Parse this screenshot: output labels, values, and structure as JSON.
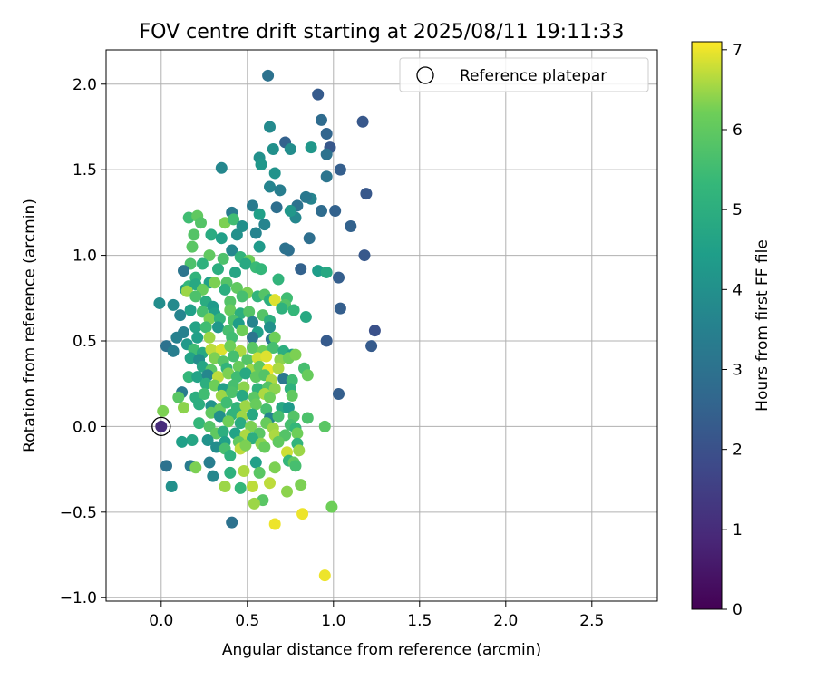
{
  "chart_data": {
    "type": "scatter",
    "title": "FOV centre drift starting at 2025/08/11 19:11:33",
    "xlabel": "Angular distance from reference (arcmin)",
    "ylabel": "Rotation from reference (arcmin)",
    "xlim": [
      -0.32,
      2.88
    ],
    "ylim": [
      -1.02,
      2.2
    ],
    "x_ticks": [
      "0.0",
      "0.5",
      "1.0",
      "1.5",
      "2.0",
      "2.5"
    ],
    "y_ticks": [
      "−1.0",
      "−0.5",
      "0.0",
      "0.5",
      "1.0",
      "1.5",
      "2.0"
    ],
    "grid": true,
    "legend": {
      "placement": "top-right",
      "entries": [
        "Reference platepar"
      ]
    },
    "colorbar": {
      "label": "Hours from first FF file",
      "colormap": "viridis",
      "range": [
        0,
        7.1
      ],
      "ticks": [
        "0",
        "1",
        "2",
        "3",
        "4",
        "5",
        "6",
        "7"
      ]
    },
    "reference_point": {
      "x": 0.0,
      "y": 0.0
    },
    "points_columns": [
      "x",
      "y",
      "hours"
    ],
    "points": [
      [
        0.0,
        0.0,
        1.0
      ],
      [
        0.62,
        2.05,
        3.0
      ],
      [
        0.91,
        1.94,
        2.3
      ],
      [
        0.93,
        1.79,
        2.8
      ],
      [
        0.63,
        1.75,
        3.8
      ],
      [
        1.17,
        1.78,
        2.2
      ],
      [
        0.96,
        1.71,
        2.6
      ],
      [
        0.72,
        1.66,
        2.5
      ],
      [
        0.98,
        1.63,
        2.2
      ],
      [
        0.87,
        1.63,
        4.2
      ],
      [
        0.75,
        1.62,
        3.9
      ],
      [
        0.96,
        1.59,
        3.0
      ],
      [
        0.57,
        1.57,
        4.0
      ],
      [
        0.65,
        1.62,
        4.0
      ],
      [
        0.58,
        1.53,
        4.2
      ],
      [
        0.35,
        1.51,
        3.7
      ],
      [
        1.04,
        1.5,
        2.4
      ],
      [
        0.66,
        1.48,
        4.1
      ],
      [
        0.96,
        1.46,
        3.1
      ],
      [
        0.63,
        1.4,
        3.6
      ],
      [
        0.69,
        1.38,
        3.4
      ],
      [
        0.87,
        1.33,
        3.6
      ],
      [
        0.84,
        1.34,
        3.2
      ],
      [
        1.19,
        1.36,
        2.2
      ],
      [
        0.53,
        1.29,
        3.3
      ],
      [
        0.67,
        1.28,
        2.9
      ],
      [
        0.79,
        1.29,
        3.0
      ],
      [
        0.93,
        1.26,
        2.8
      ],
      [
        1.01,
        1.26,
        2.5
      ],
      [
        0.41,
        1.25,
        3.3
      ],
      [
        0.57,
        1.24,
        4.5
      ],
      [
        0.78,
        1.22,
        3.7
      ],
      [
        0.75,
        1.26,
        4.2
      ],
      [
        0.16,
        1.22,
        5.5
      ],
      [
        0.21,
        1.23,
        6.0
      ],
      [
        0.23,
        1.19,
        5.8
      ],
      [
        0.37,
        1.19,
        6.3
      ],
      [
        0.42,
        1.21,
        5.5
      ],
      [
        0.47,
        1.17,
        4.0
      ],
      [
        0.6,
        1.18,
        3.6
      ],
      [
        1.1,
        1.17,
        2.5
      ],
      [
        0.19,
        1.12,
        5.8
      ],
      [
        0.29,
        1.12,
        4.9
      ],
      [
        0.35,
        1.1,
        4.5
      ],
      [
        0.44,
        1.12,
        4.0
      ],
      [
        0.55,
        1.13,
        3.6
      ],
      [
        0.86,
        1.1,
        2.9
      ],
      [
        0.18,
        1.05,
        5.9
      ],
      [
        0.41,
        1.03,
        3.7
      ],
      [
        0.57,
        1.05,
        4.3
      ],
      [
        0.74,
        1.03,
        2.9
      ],
      [
        0.72,
        1.04,
        3.0
      ],
      [
        1.18,
        1.0,
        2.2
      ],
      [
        0.28,
        1.0,
        6.0
      ],
      [
        0.36,
        0.98,
        5.7
      ],
      [
        0.46,
        0.99,
        5.2
      ],
      [
        0.51,
        0.97,
        6.2
      ],
      [
        0.17,
        0.95,
        5.7
      ],
      [
        0.24,
        0.95,
        5.1
      ],
      [
        0.49,
        0.95,
        4.8
      ],
      [
        0.55,
        0.93,
        5.4
      ],
      [
        0.13,
        0.91,
        3.1
      ],
      [
        0.33,
        0.92,
        5.0
      ],
      [
        0.43,
        0.9,
        4.7
      ],
      [
        0.58,
        0.92,
        5.3
      ],
      [
        0.81,
        0.92,
        2.5
      ],
      [
        0.91,
        0.91,
        4.4
      ],
      [
        0.96,
        0.9,
        4.8
      ],
      [
        1.03,
        0.87,
        2.4
      ],
      [
        0.2,
        0.87,
        5.2
      ],
      [
        0.28,
        0.84,
        4.5
      ],
      [
        0.38,
        0.84,
        5.8
      ],
      [
        0.68,
        0.86,
        5.2
      ],
      [
        0.14,
        0.8,
        4.2
      ],
      [
        0.16,
        0.82,
        5.3
      ],
      [
        0.2,
        0.83,
        4.8
      ],
      [
        0.24,
        0.8,
        6.1
      ],
      [
        0.31,
        0.84,
        6.3
      ],
      [
        0.37,
        0.8,
        5.0
      ],
      [
        0.44,
        0.81,
        6.0
      ],
      [
        0.5,
        0.78,
        6.3
      ],
      [
        0.15,
        0.79,
        6.5
      ],
      [
        0.2,
        0.76,
        5.7
      ],
      [
        0.26,
        0.73,
        4.9
      ],
      [
        0.3,
        0.7,
        4.3
      ],
      [
        0.4,
        0.73,
        5.8
      ],
      [
        0.47,
        0.76,
        5.6
      ],
      [
        0.56,
        0.76,
        5.2
      ],
      [
        0.6,
        0.77,
        5.8
      ],
      [
        0.63,
        0.74,
        5.0
      ],
      [
        0.66,
        0.74,
        6.9
      ],
      [
        0.73,
        0.75,
        5.5
      ],
      [
        0.72,
        0.71,
        5.8
      ],
      [
        0.7,
        0.69,
        5.1
      ],
      [
        0.77,
        0.68,
        5.3
      ],
      [
        -0.01,
        0.72,
        3.9
      ],
      [
        0.07,
        0.71,
        3.8
      ],
      [
        0.11,
        0.65,
        3.6
      ],
      [
        0.17,
        0.68,
        4.5
      ],
      [
        0.24,
        0.67,
        5.6
      ],
      [
        0.31,
        0.66,
        4.5
      ],
      [
        0.4,
        0.68,
        6.1
      ],
      [
        0.46,
        0.66,
        5.0
      ],
      [
        0.51,
        0.67,
        5.8
      ],
      [
        0.59,
        0.65,
        5.8
      ],
      [
        0.63,
        0.62,
        5.0
      ],
      [
        0.28,
        0.63,
        6.3
      ],
      [
        0.34,
        0.63,
        5.2
      ],
      [
        0.42,
        0.62,
        5.7
      ],
      [
        0.45,
        0.6,
        4.4
      ],
      [
        0.53,
        0.61,
        3.6
      ],
      [
        0.84,
        0.64,
        4.8
      ],
      [
        1.04,
        0.69,
        2.4
      ],
      [
        0.2,
        0.58,
        4.6
      ],
      [
        0.26,
        0.58,
        5.5
      ],
      [
        0.33,
        0.58,
        4.2
      ],
      [
        0.39,
        0.56,
        5.6
      ],
      [
        0.47,
        0.56,
        6.2
      ],
      [
        0.56,
        0.55,
        4.5
      ],
      [
        0.63,
        0.58,
        4.0
      ],
      [
        0.13,
        0.55,
        3.5
      ],
      [
        0.09,
        0.52,
        3.5
      ],
      [
        0.21,
        0.52,
        4.5
      ],
      [
        0.28,
        0.52,
        6.5
      ],
      [
        0.41,
        0.52,
        5.5
      ],
      [
        0.53,
        0.52,
        3.1
      ],
      [
        0.64,
        0.51,
        3.2
      ],
      [
        0.66,
        0.52,
        6.2
      ],
      [
        0.96,
        0.5,
        2.3
      ],
      [
        1.24,
        0.56,
        2.0
      ],
      [
        1.22,
        0.47,
        2.3
      ],
      [
        0.03,
        0.47,
        3.0
      ],
      [
        0.07,
        0.44,
        3.4
      ],
      [
        0.15,
        0.48,
        4.3
      ],
      [
        0.19,
        0.45,
        5.5
      ],
      [
        0.24,
        0.43,
        4.8
      ],
      [
        0.29,
        0.45,
        6.7
      ],
      [
        0.35,
        0.45,
        6.9
      ],
      [
        0.4,
        0.47,
        6.2
      ],
      [
        0.46,
        0.44,
        6.6
      ],
      [
        0.53,
        0.46,
        5.9
      ],
      [
        0.59,
        0.44,
        6.2
      ],
      [
        0.65,
        0.46,
        5.6
      ],
      [
        0.71,
        0.44,
        5.0
      ],
      [
        0.76,
        0.42,
        4.5
      ],
      [
        0.17,
        0.4,
        4.6
      ],
      [
        0.22,
        0.39,
        3.9
      ],
      [
        0.31,
        0.4,
        6.3
      ],
      [
        0.36,
        0.38,
        5.8
      ],
      [
        0.42,
        0.41,
        5.6
      ],
      [
        0.5,
        0.39,
        5.8
      ],
      [
        0.56,
        0.4,
        6.8
      ],
      [
        0.61,
        0.41,
        6.9
      ],
      [
        0.69,
        0.39,
        6.4
      ],
      [
        0.74,
        0.4,
        6.2
      ],
      [
        0.78,
        0.42,
        6.3
      ],
      [
        0.24,
        0.35,
        4.7
      ],
      [
        0.29,
        0.33,
        5.9
      ],
      [
        0.38,
        0.34,
        5.2
      ],
      [
        0.45,
        0.35,
        6.1
      ],
      [
        0.52,
        0.33,
        6.5
      ],
      [
        0.57,
        0.35,
        6.0
      ],
      [
        0.62,
        0.33,
        7.0
      ],
      [
        0.68,
        0.34,
        6.6
      ],
      [
        0.83,
        0.34,
        5.6
      ],
      [
        0.85,
        0.3,
        6.1
      ],
      [
        0.16,
        0.29,
        5.3
      ],
      [
        0.21,
        0.29,
        4.6
      ],
      [
        0.27,
        0.3,
        3.7
      ],
      [
        0.33,
        0.29,
        6.7
      ],
      [
        0.39,
        0.31,
        6.3
      ],
      [
        0.44,
        0.29,
        5.5
      ],
      [
        0.49,
        0.31,
        4.8
      ],
      [
        0.55,
        0.29,
        6.0
      ],
      [
        0.6,
        0.3,
        5.8
      ],
      [
        0.64,
        0.27,
        6.6
      ],
      [
        0.71,
        0.28,
        3.2
      ],
      [
        0.76,
        0.27,
        5.5
      ],
      [
        0.26,
        0.25,
        5.0
      ],
      [
        0.31,
        0.24,
        6.2
      ],
      [
        0.36,
        0.22,
        4.5
      ],
      [
        0.42,
        0.24,
        5.6
      ],
      [
        0.48,
        0.23,
        6.4
      ],
      [
        0.56,
        0.22,
        5.2
      ],
      [
        0.62,
        0.23,
        5.8
      ],
      [
        0.66,
        0.22,
        6.4
      ],
      [
        0.75,
        0.22,
        5.1
      ],
      [
        0.12,
        0.2,
        3.3
      ],
      [
        0.2,
        0.17,
        5.0
      ],
      [
        0.25,
        0.19,
        5.5
      ],
      [
        0.35,
        0.18,
        6.5
      ],
      [
        0.41,
        0.2,
        5.7
      ],
      [
        0.47,
        0.18,
        4.8
      ],
      [
        0.54,
        0.17,
        5.9
      ],
      [
        0.6,
        0.19,
        6.6
      ],
      [
        0.63,
        0.17,
        6.2
      ],
      [
        0.76,
        0.18,
        6.0
      ],
      [
        1.03,
        0.19,
        2.4
      ],
      [
        0.1,
        0.17,
        5.9
      ],
      [
        0.13,
        0.11,
        6.4
      ],
      [
        0.22,
        0.13,
        5.0
      ],
      [
        0.29,
        0.12,
        4.1
      ],
      [
        0.34,
        0.1,
        6.1
      ],
      [
        0.38,
        0.14,
        5.5
      ],
      [
        0.44,
        0.11,
        5.2
      ],
      [
        0.49,
        0.12,
        6.5
      ],
      [
        0.55,
        0.13,
        6.1
      ],
      [
        0.61,
        0.1,
        5.6
      ],
      [
        0.7,
        0.11,
        4.8
      ],
      [
        0.74,
        0.11,
        4.3
      ],
      [
        0.01,
        0.09,
        6.3
      ],
      [
        0.29,
        0.08,
        6.0
      ],
      [
        0.34,
        0.06,
        4.0
      ],
      [
        0.41,
        0.07,
        5.2
      ],
      [
        0.47,
        0.06,
        6.5
      ],
      [
        0.53,
        0.07,
        4.8
      ],
      [
        0.63,
        0.05,
        3.6
      ],
      [
        0.68,
        0.06,
        5.6
      ],
      [
        0.77,
        0.06,
        5.8
      ],
      [
        0.85,
        0.05,
        5.7
      ],
      [
        0.22,
        0.02,
        5.3
      ],
      [
        0.28,
        0.0,
        5.8
      ],
      [
        0.39,
        0.03,
        6.2
      ],
      [
        0.46,
        0.02,
        4.9
      ],
      [
        0.52,
        0.0,
        6.3
      ],
      [
        0.61,
        0.02,
        6.1
      ],
      [
        0.65,
        -0.01,
        6.5
      ],
      [
        0.75,
        0.01,
        5.6
      ],
      [
        0.78,
        -0.01,
        5.3
      ],
      [
        0.95,
        0.0,
        5.9
      ],
      [
        0.32,
        -0.04,
        6.0
      ],
      [
        0.36,
        -0.03,
        5.0
      ],
      [
        0.43,
        -0.04,
        4.6
      ],
      [
        0.49,
        -0.05,
        6.6
      ],
      [
        0.57,
        -0.04,
        5.9
      ],
      [
        0.66,
        -0.05,
        6.6
      ],
      [
        0.72,
        -0.05,
        5.8
      ],
      [
        0.79,
        -0.04,
        6.2
      ],
      [
        0.18,
        -0.08,
        4.7
      ],
      [
        0.27,
        -0.08,
        4.1
      ],
      [
        0.37,
        -0.09,
        4.5
      ],
      [
        0.45,
        -0.09,
        6.0
      ],
      [
        0.53,
        -0.07,
        5.0
      ],
      [
        0.58,
        -0.1,
        6.4
      ],
      [
        0.68,
        -0.09,
        6.0
      ],
      [
        0.79,
        -0.1,
        5.2
      ],
      [
        0.12,
        -0.09,
        4.5
      ],
      [
        0.32,
        -0.12,
        3.9
      ],
      [
        0.37,
        -0.13,
        5.6
      ],
      [
        0.46,
        -0.13,
        6.7
      ],
      [
        0.49,
        -0.11,
        6.3
      ],
      [
        0.6,
        -0.12,
        6.1
      ],
      [
        0.73,
        -0.15,
        6.8
      ],
      [
        0.8,
        -0.14,
        6.5
      ],
      [
        0.4,
        -0.17,
        5.1
      ],
      [
        0.17,
        -0.23,
        3.3
      ],
      [
        0.28,
        -0.21,
        3.4
      ],
      [
        0.55,
        -0.21,
        4.5
      ],
      [
        0.66,
        -0.24,
        6.3
      ],
      [
        0.74,
        -0.2,
        5.3
      ],
      [
        0.77,
        -0.21,
        6.0
      ],
      [
        0.78,
        -0.23,
        5.6
      ],
      [
        0.03,
        -0.23,
        3.0
      ],
      [
        0.2,
        -0.24,
        6.3
      ],
      [
        0.3,
        -0.29,
        3.7
      ],
      [
        0.4,
        -0.27,
        5.1
      ],
      [
        0.48,
        -0.26,
        6.6
      ],
      [
        0.57,
        -0.27,
        5.9
      ],
      [
        0.81,
        -0.34,
        6.3
      ],
      [
        0.63,
        -0.33,
        6.7
      ],
      [
        0.73,
        -0.38,
        6.4
      ],
      [
        0.06,
        -0.35,
        4.0
      ],
      [
        0.37,
        -0.35,
        6.5
      ],
      [
        0.46,
        -0.36,
        5.3
      ],
      [
        0.53,
        -0.35,
        6.7
      ],
      [
        0.59,
        -0.43,
        5.9
      ],
      [
        0.54,
        -0.45,
        6.5
      ],
      [
        0.99,
        -0.47,
        6.2
      ],
      [
        0.82,
        -0.51,
        7.0
      ],
      [
        0.41,
        -0.56,
        3.0
      ],
      [
        0.66,
        -0.57,
        7.0
      ],
      [
        0.95,
        -0.87,
        7.0
      ]
    ]
  }
}
